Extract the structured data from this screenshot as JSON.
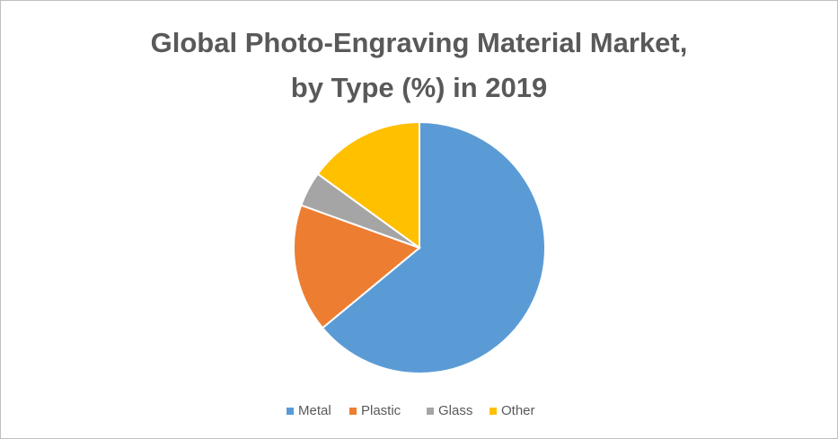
{
  "chart_data": {
    "type": "pie",
    "title": "Global Photo-Engraving Material Market,\nby Type (%) in 2019",
    "categories": [
      "Metal",
      "Plastic",
      "Glass",
      "Other"
    ],
    "values": [
      64,
      16.5,
      4.5,
      15
    ],
    "colors": [
      "#5b9bd5",
      "#ed7d31",
      "#a5a5a5",
      "#ffc000"
    ],
    "legend": "bottom"
  }
}
